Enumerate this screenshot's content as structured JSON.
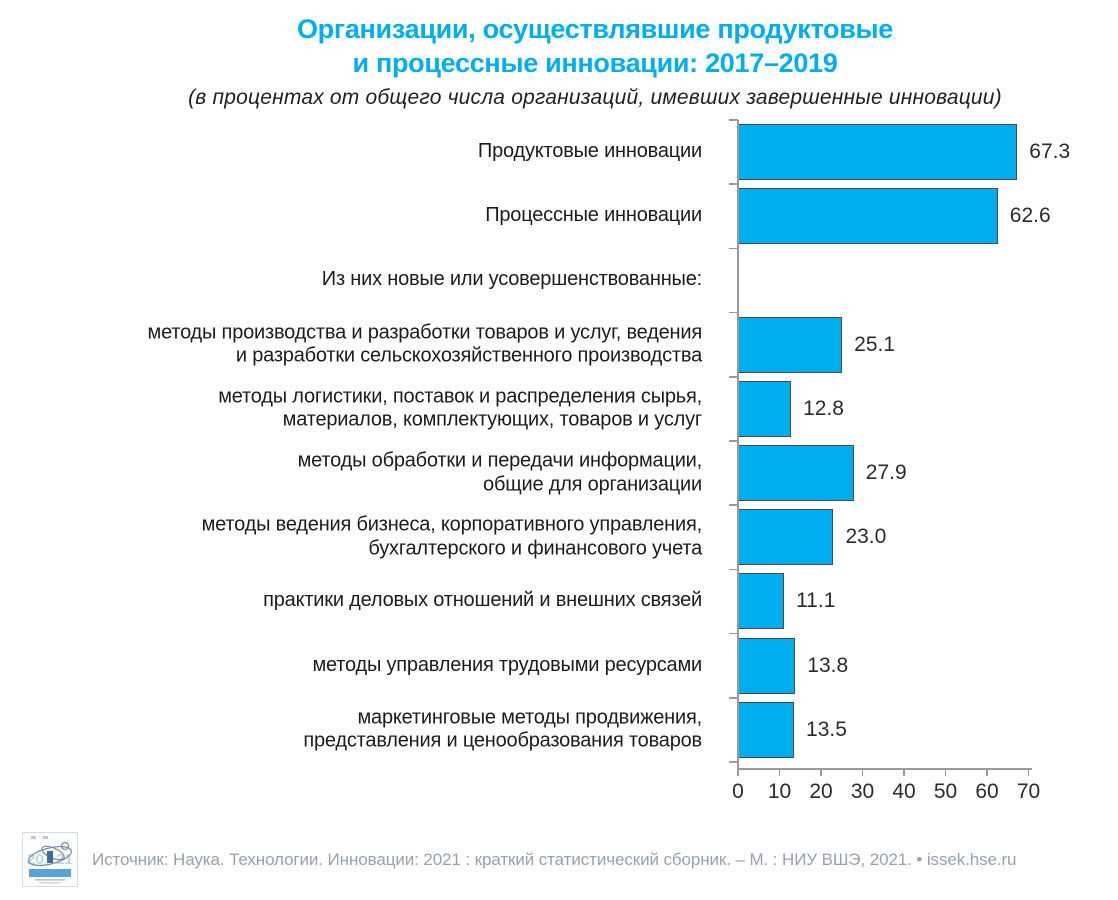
{
  "header": {
    "title_line1": "Организации, осуществлявшие продуктовые",
    "title_line2": "и процессные инновации: 2017–2019",
    "subtitle": "(в процентах от общего числа организаций, имевших завершенные инновации)",
    "title_color": "#00aeef"
  },
  "chart_data": {
    "type": "bar",
    "orientation": "horizontal",
    "title": "Организации, осуществлявшие продуктовые и процессные инновации: 2017–2019",
    "subtitle": "(в процентах от общего числа организаций, имевших завершенные инновации)",
    "xlabel": "",
    "ylabel": "",
    "xlim": [
      0,
      70
    ],
    "x_ticks": [
      0,
      10,
      20,
      30,
      40,
      50,
      60,
      70
    ],
    "grid": false,
    "legend": false,
    "bar_color": "#00aeef",
    "bar_border_color": "#4a4a4a",
    "categories": [
      "Продуктовые инновации",
      "Процессные инновации",
      "Из них новые или усовершенствованные:",
      "методы производства и разработки товаров и услуг, ведения и разработки сельскохозяйственного производства",
      "методы логистики, поставок и распределения сырья, материалов, комплектующих, товаров и услуг",
      "методы обработки и передачи информации, общие для организации",
      "методы ведения бизнеса, корпоративного управления, бухгалтерского и финансового учета",
      "практики деловых отношений и внешних связей",
      "методы управления трудовыми ресурсами",
      "маркетинговые методы продвижения, представления и ценообразования товаров"
    ],
    "values": [
      67.3,
      62.6,
      null,
      25.1,
      12.8,
      27.9,
      23.0,
      11.1,
      13.8,
      13.5
    ],
    "value_labels": [
      "67.3",
      "62.6",
      "",
      "25.1",
      "12.8",
      "27.9",
      "23.0",
      "11.1",
      "13.8",
      "13.5"
    ],
    "label_lines": [
      [
        "Продуктовые инновации"
      ],
      [
        "Процессные инновации"
      ],
      [
        "Из них новые или  усовершенствованные:"
      ],
      [
        "методы производства и разработки товаров и услуг, ведения",
        "и разработки сельскохозяйственного производства"
      ],
      [
        "методы логистики, поставок и распределения сырья,",
        "материалов, комплектующих, товаров и услуг"
      ],
      [
        "методы обработки и передачи информации,",
        "общие для организации"
      ],
      [
        "методы ведения бизнеса, корпоративного управления,",
        "бухгалтерского и финансового учета"
      ],
      [
        "практики деловых отношений и внешних связей"
      ],
      [
        "методы управления трудовыми ресурсами"
      ],
      [
        "маркетинговые методы продвижения,",
        "представления и ценообразования товаров"
      ]
    ]
  },
  "footer": {
    "source": "Источник: Наука. Технологии. Инновации: 2021 : краткий статистический сборник. – М. : НИУ ВШЭ, 2021. • issek.hse.ru",
    "logo_year": "2021",
    "text_color": "#99a1ae"
  }
}
